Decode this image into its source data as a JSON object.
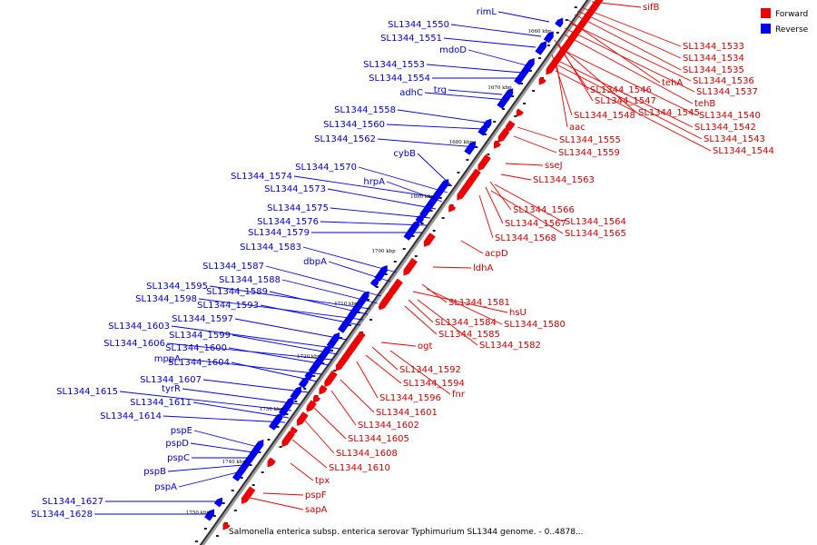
{
  "caption": "Salmonella enterica subsp. enterica serovar Typhimurium SL1344 genome. - 0..4878...",
  "legend": [
    {
      "label": "Forward",
      "color": "#ee0000"
    },
    {
      "label": "Reverse",
      "color": "#0000ee"
    }
  ],
  "ticks": [
    "1660 kbp",
    "1670 kbp",
    "1680 kbp",
    "1690 kbp",
    "1700 kbp",
    "1710 kbp",
    "1720 kbp",
    "1730 kbp",
    "1740 kbp",
    "1750 kbp"
  ],
  "forward_labels": [
    "sifB",
    "SL1344_1533",
    "SL1344_1534",
    "SL1344_1535",
    "tehA",
    "SL1344_1536",
    "SL1344_1537",
    "SL1344_1546",
    "tehB",
    "SL1344_1547",
    "SL1344_1545",
    "SL1344_1540",
    "SL1344_1548",
    "aac",
    "SL1344_1542",
    "SL1344_1543",
    "SL1344_1544",
    "SL1344_1555",
    "SL1344_1559",
    "sseJ",
    "SL1344_1563",
    "SL1344_1566",
    "SL1344_1567",
    "SL1344_1564",
    "SL1344_1565",
    "SL1344_1568",
    "acpD",
    "ldhA",
    "SL1344_1581",
    "hsU",
    "SL1344_1584",
    "SL1344_1580",
    "SL1344_1585",
    "SL1344_1582",
    "ogt",
    "SL1344_1592",
    "SL1344_1594",
    "fnr",
    "SL1344_1596",
    "SL1344_1601",
    "SL1344_1602",
    "SL1344_1605",
    "SL1344_1608",
    "SL1344_1610",
    "tpx",
    "pspF",
    "sapA"
  ],
  "reverse_labels": [
    "rimL",
    "SL1344_1550",
    "SL1344_1551",
    "mdoD",
    "SL1344_1553",
    "SL1344_1554",
    "trg",
    "adhC",
    "SL1344_1558",
    "SL1344_1560",
    "SL1344_1562",
    "cybB",
    "SL1344_1570",
    "SL1344_1574",
    "hrpA",
    "SL1344_1573",
    "SL1344_1575",
    "SL1344_1576",
    "SL1344_1579",
    "SL1344_1583",
    "dbpA",
    "SL1344_1587",
    "SL1344_1588",
    "SL1344_1595",
    "SL1344_1589",
    "SL1344_1598",
    "SL1344_1593",
    "SL1344_1597",
    "SL1344_1603",
    "SL1344_1599",
    "SL1344_1606",
    "SL1344_1600",
    "mppA",
    "SL1344_1604",
    "SL1344_1607",
    "tyrR",
    "SL1344_1615",
    "SL1344_1611",
    "SL1344_1614",
    "pspE",
    "pspD",
    "pspC",
    "pspB",
    "pspA",
    "SL1344_1627",
    "SL1344_1628"
  ]
}
